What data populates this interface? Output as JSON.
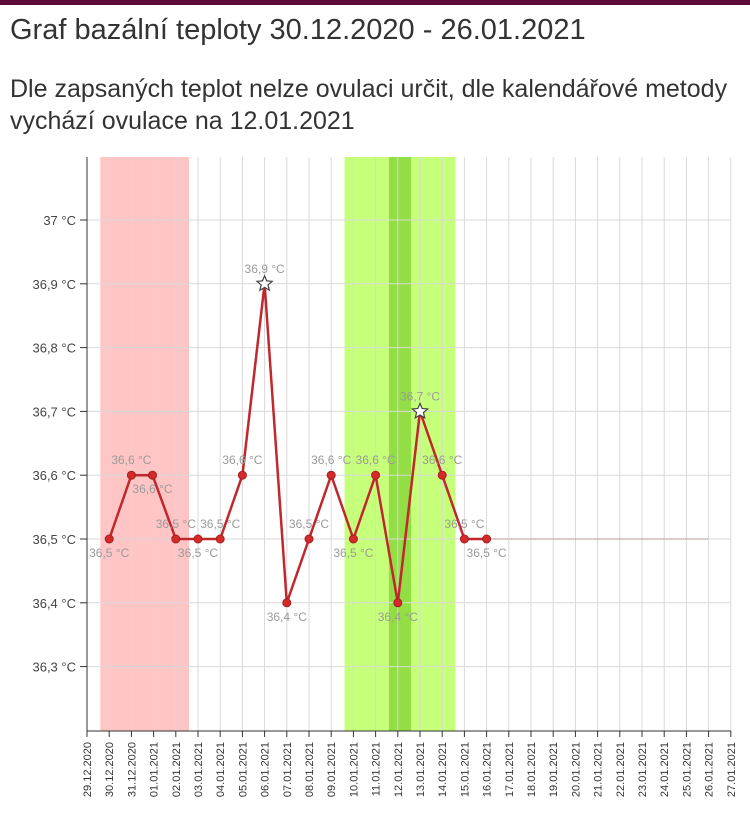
{
  "page": {
    "title": "Graf bazální teploty 30.12.2020 - 26.01.2021",
    "subtitle": "Dle zapsaných teplot nelze ovulaci určit, dle kalendářové metody vychází ovulace na 12.01.2021"
  },
  "chart_data": {
    "type": "line",
    "title": "",
    "xlabel": "",
    "ylabel": "",
    "ylim": [
      36.2,
      37.1
    ],
    "yticks": [
      {
        "value": 36.3,
        "label": "36,3 °C"
      },
      {
        "value": 36.4,
        "label": "36,4 °C"
      },
      {
        "value": 36.5,
        "label": "36,5 °C"
      },
      {
        "value": 36.6,
        "label": "36,6 °C"
      },
      {
        "value": 36.7,
        "label": "36,7 °C"
      },
      {
        "value": 36.8,
        "label": "36,8 °C"
      },
      {
        "value": 36.9,
        "label": "36,9 °C"
      },
      {
        "value": 37.0,
        "label": "37 °C"
      }
    ],
    "categories": [
      "29.12.2020",
      "30.12.2020",
      "31.12.2020",
      "01.01.2021",
      "02.01.2021",
      "03.01.2021",
      "04.01.2021",
      "05.01.2021",
      "06.01.2021",
      "07.01.2021",
      "08.01.2021",
      "09.01.2021",
      "10.01.2021",
      "11.01.2021",
      "12.01.2021",
      "13.01.2021",
      "14.01.2021",
      "15.01.2021",
      "16.01.2021",
      "17.01.2021",
      "18.01.2021",
      "19.01.2021",
      "20.01.2021",
      "21.01.2021",
      "22.01.2021",
      "23.01.2021",
      "24.01.2021",
      "25.01.2021",
      "26.01.2021",
      "27.01.2021"
    ],
    "grid": true,
    "line_color": "#c0282d",
    "period_band": {
      "from": 0.6,
      "to": 4.6,
      "color": "#ffc4c4"
    },
    "fertile_band": {
      "from": 11.6,
      "to": 16.6,
      "color": "#c6ff7a"
    },
    "ovulation_band": {
      "from": 13.6,
      "to": 14.6,
      "color": "#93dd45"
    },
    "series": [
      {
        "values": [
          {
            "x": 1,
            "y": 36.5,
            "label": "36,5 °C",
            "pos": "below"
          },
          {
            "x": 2,
            "y": 36.6,
            "label": "36,6 °C",
            "pos": "above"
          },
          {
            "x": 2.95,
            "y": 36.6,
            "label": "36,6 °C",
            "pos": "below"
          },
          {
            "x": 4,
            "y": 36.5,
            "label": "36,5 °C",
            "pos": "above"
          },
          {
            "x": 5,
            "y": 36.5,
            "label": "36,5 °C",
            "pos": "below"
          },
          {
            "x": 6,
            "y": 36.5,
            "label": "36,5 °C",
            "pos": "above"
          },
          {
            "x": 7,
            "y": 36.6,
            "label": "36,6 °C",
            "pos": "above"
          },
          {
            "x": 8,
            "y": 36.9,
            "label": "36,9 °C",
            "pos": "above",
            "star": true
          },
          {
            "x": 9,
            "y": 36.4,
            "label": "36,4 °C",
            "pos": "below"
          },
          {
            "x": 10,
            "y": 36.5,
            "label": "36,5 °C",
            "pos": "above"
          },
          {
            "x": 11,
            "y": 36.6,
            "label": "36,6 °C",
            "pos": "above"
          },
          {
            "x": 12,
            "y": 36.5,
            "label": "36,5 °C",
            "pos": "below"
          },
          {
            "x": 13,
            "y": 36.6,
            "label": "36,6 °C",
            "pos": "above"
          },
          {
            "x": 14,
            "y": 36.4,
            "label": "36,4 °C",
            "pos": "below"
          },
          {
            "x": 15,
            "y": 36.7,
            "label": "36,7 °C",
            "pos": "above",
            "star": true
          },
          {
            "x": 16,
            "y": 36.6,
            "label": "36,6 °C",
            "pos": "above"
          },
          {
            "x": 17,
            "y": 36.5,
            "label": "36,5 °C",
            "pos": "above"
          },
          {
            "x": 18,
            "y": 36.5,
            "label": "36,5 °C",
            "pos": "below"
          }
        ]
      }
    ],
    "projection": {
      "from": 18,
      "to": 28,
      "y": 36.5,
      "color": "#c98a8a"
    }
  }
}
